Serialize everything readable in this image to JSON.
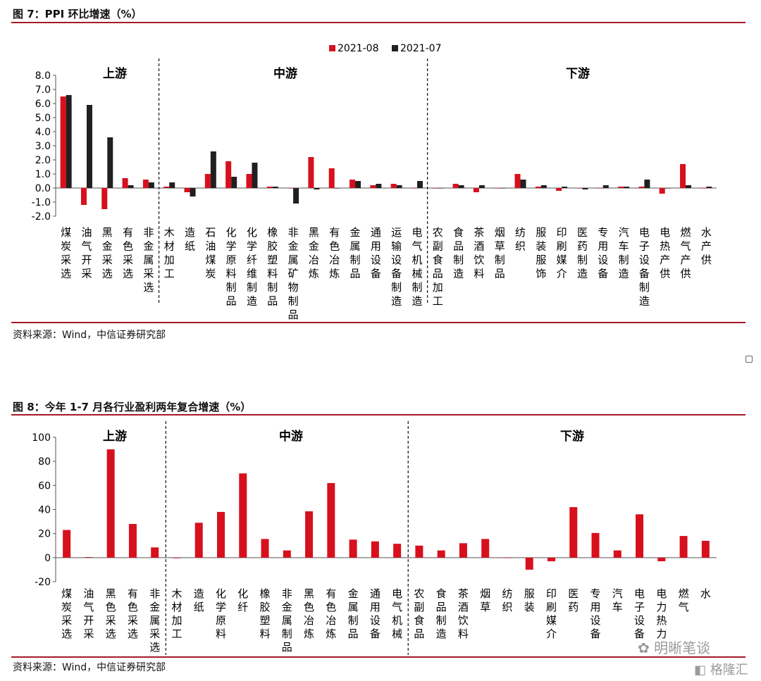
{
  "figure7": {
    "title": "图 7：PPI 环比增速（%）",
    "source": "资料来源：Wind，中信证券研究部"
  },
  "figure8": {
    "title": "图 8：今年 1-7 月各行业盈利两年复合增速（%）",
    "source": "资料来源：Wind，中信证券研究部"
  },
  "watermark": {
    "text1": "明晰笔谈",
    "text2": "格隆汇"
  },
  "colors": {
    "red": "#d7101e",
    "black": "#231f20",
    "rule": "#a5192a"
  },
  "chart_data": [
    {
      "type": "bar",
      "title": "PPI 环比增速（%）",
      "ylim": [
        -2.0,
        8.0
      ],
      "yticks": [
        "8.0",
        "7.0",
        "6.0",
        "5.0",
        "4.0",
        "3.0",
        "2.0",
        "1.0",
        "0.0",
        "-1.0",
        "-2.0"
      ],
      "sections": [
        "上游",
        "中游",
        "下游"
      ],
      "legend_position": "top-center",
      "categories": [
        "煤炭采选",
        "油气开采",
        "黑金采选",
        "有色采选",
        "非金属采选",
        "木材加工",
        "造纸",
        "石油煤炭",
        "化学原料制品",
        "化学纤维制造",
        "橡胶塑料制品",
        "非金属矿物制品",
        "黑金冶炼",
        "有色冶炼",
        "金属制品",
        "通用设备",
        "运输设备制造",
        "电气机械制造",
        "农副食品加工",
        "食品制造",
        "茶酒饮料",
        "烟草制品",
        "纺织",
        "服装服饰",
        "印刷媒介",
        "医药制造",
        "专用设备",
        "汽车制造",
        "电子设备制造",
        "电热产供",
        "燃气产供",
        "水产供"
      ],
      "series": [
        {
          "name": "2021-08",
          "values": [
            6.5,
            -1.2,
            -1.5,
            0.7,
            0.6,
            0.1,
            -0.3,
            1.0,
            1.9,
            1.0,
            0.1,
            0.0,
            2.2,
            1.4,
            0.6,
            0.2,
            0.3,
            0.0,
            0.0,
            0.3,
            -0.3,
            0.0,
            1.0,
            0.1,
            -0.2,
            0.0,
            0.0,
            0.1,
            0.1,
            -0.4,
            1.7,
            0.0
          ]
        },
        {
          "name": "2021-07",
          "values": [
            6.6,
            5.9,
            3.6,
            0.2,
            0.4,
            0.4,
            -0.6,
            2.6,
            0.8,
            1.8,
            0.1,
            -1.1,
            -0.1,
            0.0,
            0.5,
            0.3,
            0.2,
            0.5,
            0.0,
            0.2,
            0.2,
            0.0,
            0.6,
            0.2,
            0.1,
            -0.1,
            0.2,
            0.1,
            0.6,
            0.0,
            0.2,
            0.1
          ]
        }
      ]
    },
    {
      "type": "bar",
      "title": "今年 1-7 月各行业盈利两年复合增速（%）",
      "ylim": [
        -20,
        100
      ],
      "yticks": [
        "100",
        "80",
        "60",
        "40",
        "20",
        "0",
        "-20"
      ],
      "sections": [
        "上游",
        "中游",
        "下游"
      ],
      "categories": [
        "煤炭采选",
        "油气开采",
        "黑色采选",
        "有色采选",
        "非金属采选",
        "木材加工",
        "造纸",
        "化学原料",
        "化纤",
        "橡胶塑料",
        "非金属制品",
        "黑色冶炼",
        "有色冶炼",
        "金属制品",
        "通用设备",
        "电气机械",
        "农副食品",
        "食品制造",
        "茶酒饮料",
        "烟草",
        "纺织",
        "服装",
        "印刷媒介",
        "医药",
        "专用设备",
        "汽车",
        "电子设备",
        "电力热力",
        "燃气",
        "水"
      ],
      "series": [
        {
          "name": "盈利两年复合增速",
          "values": [
            23,
            0.5,
            90,
            28,
            8.5,
            -0.5,
            29,
            38,
            70,
            15.5,
            6,
            38.5,
            62,
            15,
            13.5,
            11.5,
            10,
            6,
            12,
            15.5,
            0,
            -10,
            -3,
            42,
            20.5,
            6,
            36,
            -3,
            18,
            14
          ]
        }
      ]
    }
  ]
}
